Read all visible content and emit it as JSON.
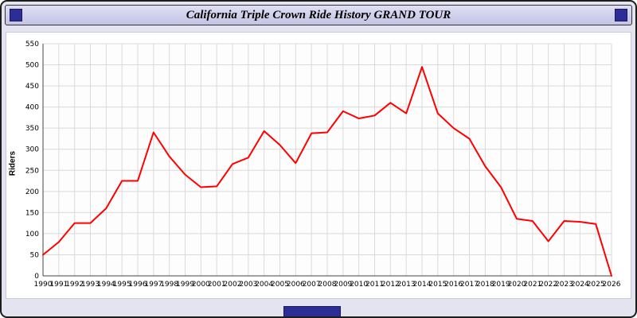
{
  "window": {
    "title": "California Triple Crown Ride History GRAND TOUR"
  },
  "chart_data": {
    "type": "line",
    "title": "California Triple Crown Ride History GRAND TOUR",
    "xlabel": "",
    "ylabel": "Riders",
    "ylim": [
      0,
      550
    ],
    "ytick_step": 50,
    "grid": true,
    "legend": "none",
    "line_color": "#ff0000",
    "x": [
      1990,
      1991,
      1992,
      1993,
      1994,
      1995,
      1996,
      1997,
      1998,
      1999,
      2000,
      2001,
      2002,
      2003,
      2004,
      2005,
      2006,
      2007,
      2008,
      2009,
      2010,
      2011,
      2012,
      2013,
      2014,
      2015,
      2016,
      2017,
      2018,
      2019,
      2020,
      2021,
      2022,
      2023,
      2024,
      2025,
      2026
    ],
    "series": [
      {
        "name": "Riders",
        "color": "#ff0000",
        "values": [
          50,
          80,
          125,
          125,
          160,
          225,
          225,
          340,
          283,
          240,
          210,
          212,
          265,
          280,
          343,
          310,
          267,
          338,
          340,
          390,
          373,
          380,
          410,
          385,
          495,
          385,
          350,
          325,
          260,
          210,
          135,
          130,
          82,
          130,
          128,
          123,
          0
        ]
      }
    ]
  }
}
